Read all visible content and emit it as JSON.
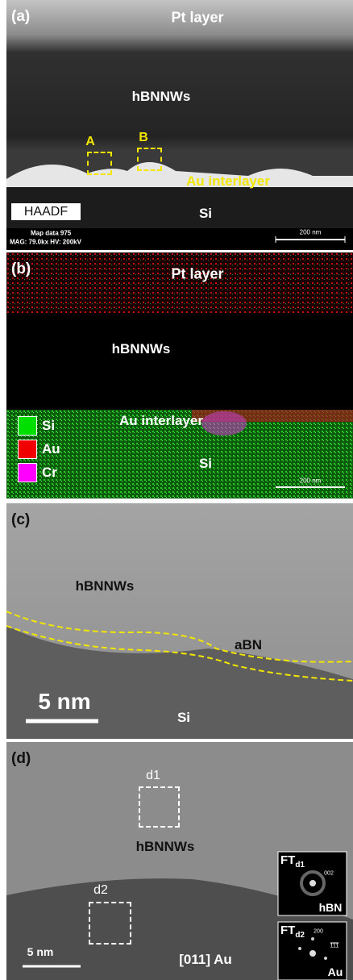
{
  "panels": [
    {
      "label": "(a)",
      "texts": {
        "top": "Pt layer",
        "middle": "hBNNWs",
        "box_a": "A",
        "box_b": "B",
        "interlayer": "Au interlayer",
        "detector": "HAADF",
        "bottom": "Si",
        "info1": "Map data 975",
        "info2": "MAG: 79.0kx  HV: 200kV",
        "scale": "200 nm"
      }
    },
    {
      "label": "(b)",
      "texts": {
        "top": "Pt layer",
        "middle": "hBNNWs",
        "interlayer": "Au interlayer",
        "bottom": "Si",
        "scale": "200 nm"
      },
      "legend": [
        "Si",
        "Au",
        "Cr"
      ]
    },
    {
      "label": "(c)",
      "texts": {
        "middle": "hBNNWs",
        "interface": "aBN",
        "scale": "5 nm",
        "bottom": "Si"
      }
    },
    {
      "label": "(d)",
      "texts": {
        "box_1": "d1",
        "middle": "hBNNWs",
        "box_2": "d2",
        "bottom": "[011] Au",
        "scale": "5 nm"
      },
      "insets": [
        {
          "title": "FT",
          "sub": "d1",
          "spot": "002",
          "phase": "hBN"
        },
        {
          "title": "FT",
          "sub": "d2",
          "spot": "200",
          "spot2": "111",
          "phase": "Au"
        }
      ]
    }
  ]
}
